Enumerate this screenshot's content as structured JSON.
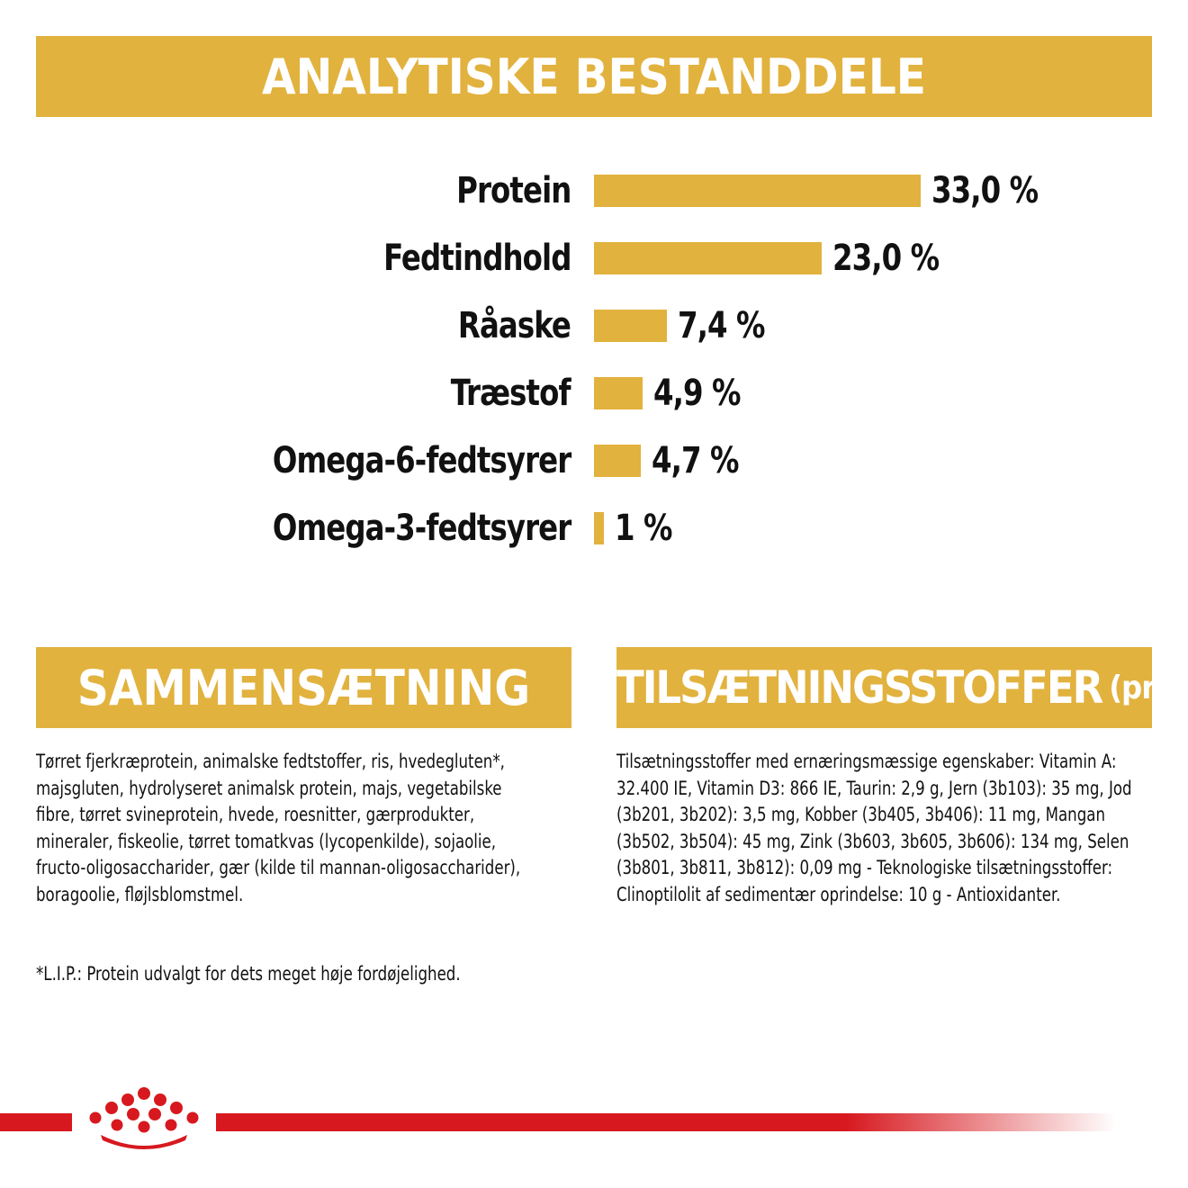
{
  "header": {
    "title": "ANALYTISKE BESTANDDELE"
  },
  "chart_data": {
    "type": "bar",
    "orientation": "horizontal",
    "title": "ANALYTISKE BESTANDDELE",
    "categories": [
      "Protein",
      "Fedtindhold",
      "Råaske",
      "Træstof",
      "Omega-6-fedtsyrer",
      "Omega-3-fedtsyrer"
    ],
    "values": [
      33.0,
      23.0,
      7.4,
      4.9,
      4.7,
      1
    ],
    "value_labels": [
      "33,0 %",
      "23,0 %",
      "7,4 %",
      "4,9 %",
      "4,7 %",
      "1 %"
    ],
    "unit": "%",
    "bar_color": "#e2b23e",
    "grid": false
  },
  "composition": {
    "title": "SAMMENSÆTNING",
    "text": "Tørret fjerkræprotein, animalske fedtstoffer, ris, hvedegluten*, majsgluten, hydrolyseret animalsk protein, majs, vegetabilske fibre, tørret svineprotein, hvede, roesnitter, gærprodukter, mineraler, fiskeolie, tørret tomatkvas (lycopenkilde), sojaolie, fructo-oligosaccharider, gær (kilde til mannan-oligosaccharider), boragoolie, fløjlsblomstmel.",
    "footnote": "*L.I.P.: Protein udvalgt for dets meget høje fordøjelighed."
  },
  "additives": {
    "title": "TILSÆTNINGSSTOFFER",
    "title_unit": "(pr. kg)",
    "text": "Tilsætningsstoffer med ernæringsmæssige egenskaber: Vitamin A: 32.400 IE, Vitamin D3: 866 IE, Taurin: 2,9 g, Jern (3b103): 35 mg, Jod (3b201, 3b202): 3,5 mg, Kobber (3b405, 3b406): 11 mg, Mangan (3b502, 3b504): 45 mg, Zink (3b603, 3b605, 3b606): 134 mg, Selen (3b801, 3b811, 3b812): 0,09 mg - Teknologiske tilsætningsstoffer: Clinoptilolit af sedimentær oprindelse: 10 g - Antioxidanter."
  },
  "colors": {
    "accent": "#e2b23e",
    "brand_red": "#d7191f"
  },
  "footer": {
    "logo_icon": "crown-icon"
  }
}
